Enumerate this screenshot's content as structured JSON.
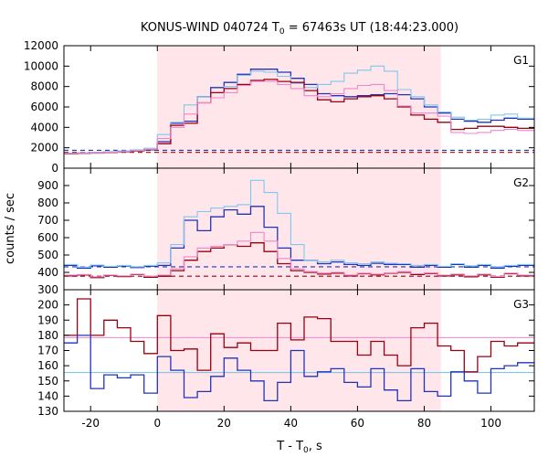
{
  "figure": {
    "title_prefix": "KONUS-WIND 040724 T",
    "title_sub": "0",
    "title_suffix": " = 67463s UT (18:44:23.000)",
    "ylabel": "counts / sec",
    "xlabel_prefix": "T - T",
    "xlabel_sub": "0",
    "xlabel_suffix": ", s"
  },
  "chart_data": {
    "type": "line",
    "xlim": [
      -28,
      113
    ],
    "x_ticks": [
      -20,
      0,
      20,
      40,
      60,
      80,
      100
    ],
    "shaded_interval": [
      0,
      85
    ],
    "shade_color": "#ffe6ea",
    "step_edges": [
      -28,
      -24,
      -20,
      -16,
      -12,
      -8,
      -4,
      0,
      4,
      8,
      12,
      16,
      20,
      24,
      28,
      32,
      36,
      40,
      44,
      48,
      52,
      56,
      60,
      64,
      68,
      72,
      76,
      80,
      84,
      88,
      92,
      96,
      100,
      104,
      108,
      113
    ],
    "panels": [
      {
        "label": "G1",
        "ylim": [
          0,
          12000
        ],
        "y_ticks": [
          0,
          2000,
          4000,
          6000,
          8000,
          10000,
          12000
        ],
        "series": [
          {
            "color": "#2233bb",
            "width": 1.3,
            "values": [
              1450,
              1480,
              1520,
              1580,
              1650,
              1720,
              1800,
              2600,
              4400,
              4600,
              7000,
              7900,
              8400,
              9200,
              9700,
              9700,
              9400,
              8800,
              8200,
              7300,
              7100,
              7000,
              7100,
              7200,
              7300,
              7200,
              6800,
              6000,
              5400,
              4800,
              4600,
              4500,
              4700,
              4900,
              4800
            ]
          },
          {
            "color": "#7ec8f0",
            "width": 1.1,
            "values": [
              1480,
              1520,
              1560,
              1620,
              1700,
              1800,
              1950,
              3300,
              4500,
              6200,
              7000,
              7400,
              8000,
              9100,
              9500,
              9400,
              9000,
              8300,
              7900,
              8200,
              8500,
              9300,
              9600,
              10000,
              9500,
              7700,
              7000,
              6200,
              5500,
              5000,
              4700,
              4800,
              5200,
              5300,
              4900
            ]
          },
          {
            "color": "#990011",
            "width": 1.3,
            "values": [
              1400,
              1440,
              1480,
              1540,
              1600,
              1680,
              1800,
              2400,
              4200,
              4400,
              6400,
              7400,
              7800,
              8200,
              8600,
              8700,
              8500,
              8400,
              7600,
              6700,
              6500,
              6800,
              7000,
              7100,
              6800,
              6000,
              5200,
              4800,
              4500,
              3800,
              3900,
              4100,
              4100,
              4000,
              3900
            ]
          },
          {
            "color": "#ee88cc",
            "width": 1.1,
            "values": [
              1420,
              1460,
              1500,
              1560,
              1630,
              1720,
              1850,
              2900,
              4000,
              5300,
              6400,
              6900,
              7400,
              8100,
              8500,
              8500,
              8200,
              7800,
              7100,
              7000,
              7300,
              7800,
              8100,
              8200,
              7600,
              6100,
              5400,
              5400,
              5100,
              3500,
              3400,
              3500,
              3700,
              3800,
              3700
            ]
          }
        ],
        "bg_levels": [
          {
            "color": "#2233bb",
            "value": 1750,
            "dashed": true
          },
          {
            "color": "#990011",
            "value": 1550,
            "dashed": true
          }
        ]
      },
      {
        "label": "G2",
        "ylim": [
          300,
          1000
        ],
        "y_ticks": [
          300,
          400,
          500,
          600,
          700,
          800,
          900
        ],
        "series": [
          {
            "color": "#2233bb",
            "width": 1.3,
            "values": [
              440,
              425,
              438,
              430,
              437,
              428,
              436,
              440,
              540,
              700,
              640,
              720,
              760,
              735,
              780,
              660,
              540,
              470,
              470,
              450,
              460,
              445,
              440,
              452,
              446,
              445,
              430,
              440,
              430,
              445,
              430,
              440,
              425,
              435,
              440
            ]
          },
          {
            "color": "#7ec8f0",
            "width": 1.1,
            "values": [
              445,
              430,
              442,
              435,
              440,
              432,
              440,
              455,
              560,
              720,
              750,
              770,
              780,
              790,
              930,
              860,
              740,
              560,
              470,
              460,
              470,
              455,
              450,
              460,
              452,
              450,
              440,
              445,
              435,
              450,
              438,
              445,
              432,
              440,
              445
            ]
          },
          {
            "color": "#990011",
            "width": 1.3,
            "values": [
              380,
              385,
              370,
              382,
              376,
              388,
              372,
              378,
              410,
              470,
              520,
              540,
              560,
              550,
              570,
              520,
              450,
              410,
              400,
              390,
              395,
              380,
              392,
              386,
              395,
              400,
              388,
              394,
              380,
              386,
              375,
              386,
              372,
              392,
              380
            ]
          },
          {
            "color": "#ee88cc",
            "width": 1.1,
            "values": [
              385,
              388,
              375,
              385,
              380,
              390,
              378,
              384,
              420,
              490,
              540,
              550,
              560,
              580,
              630,
              580,
              480,
              420,
              404,
              396,
              400,
              385,
              395,
              390,
              398,
              404,
              392,
              398,
              384,
              390,
              380,
              390,
              376,
              396,
              384
            ]
          }
        ],
        "bg_levels": [
          {
            "color": "#2233bb",
            "value": 432,
            "dashed": true
          },
          {
            "color": "#990011",
            "value": 378,
            "dashed": true
          }
        ]
      },
      {
        "label": "G3",
        "ylim": [
          130,
          210
        ],
        "y_ticks": [
          130,
          140,
          150,
          160,
          170,
          180,
          190,
          200
        ],
        "series": [
          {
            "color": "#990011",
            "width": 1.3,
            "values": [
              180,
              204,
              180,
              190,
              185,
              176,
              168,
              193,
              170,
              171,
              157,
              181,
              172,
              175,
              170,
              170,
              188,
              177,
              192,
              191,
              176,
              176,
              167,
              176,
              167,
              160,
              185,
              188,
              173,
              170,
              156,
              166,
              176,
              173,
              175
            ]
          },
          {
            "color": "#2233bb",
            "width": 1.3,
            "values": [
              175,
              180,
              145,
              154,
              152,
              154,
              142,
              166,
              157,
              139,
              143,
              153,
              165,
              157,
              150,
              137,
              149,
              170,
              153,
              156,
              158,
              149,
              146,
              158,
              144,
              137,
              158,
              143,
              140,
              156,
              150,
              142,
              158,
              160,
              162
            ]
          }
        ],
        "bg_levels": [
          {
            "color": "#ee88cc",
            "value": 178.5,
            "dashed": false
          },
          {
            "color": "#7ec8f0",
            "value": 155.5,
            "dashed": false
          }
        ]
      }
    ]
  }
}
